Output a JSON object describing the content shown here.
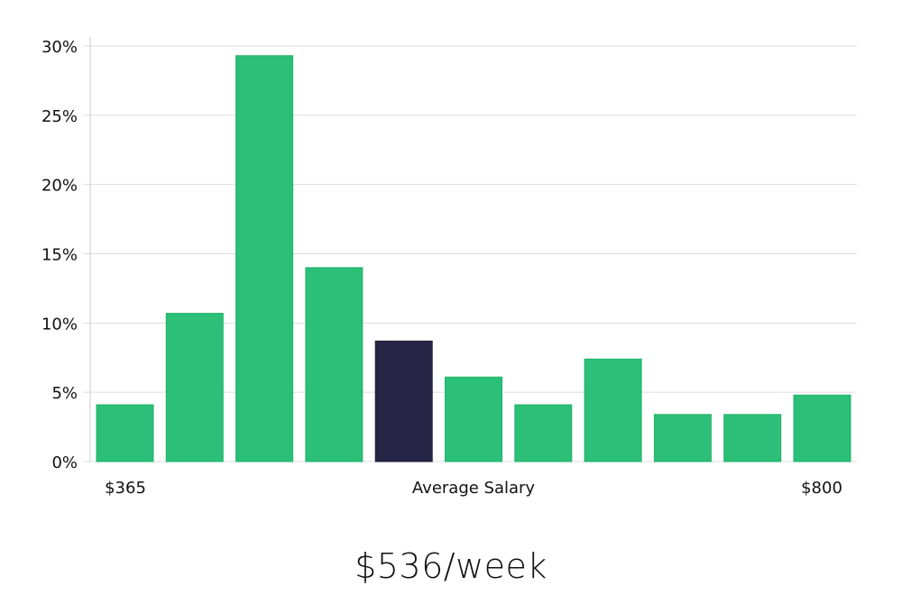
{
  "chart_data": {
    "type": "bar",
    "categories": [
      "",
      "",
      "",
      "",
      "",
      "",
      "",
      "",
      "",
      "",
      ""
    ],
    "values": [
      4.1,
      10.7,
      29.3,
      14.0,
      8.7,
      6.1,
      4.1,
      7.4,
      3.4,
      3.4,
      4.8
    ],
    "highlight_index": 4,
    "ylim": [
      0,
      30
    ],
    "yticks": [
      0,
      5,
      10,
      15,
      20,
      25,
      30
    ],
    "ytick_labels": [
      "0%",
      "5%",
      "10%",
      "15%",
      "20%",
      "25%",
      "30%"
    ],
    "grid": true,
    "x_annotations": {
      "left": "$365",
      "center": "Average Salary",
      "right": "$800"
    },
    "colors": {
      "bar": "#2bbf77",
      "highlight": "#272545",
      "grid": "#dddddd",
      "axis": "#cccccc"
    }
  },
  "headline": "$536/week"
}
